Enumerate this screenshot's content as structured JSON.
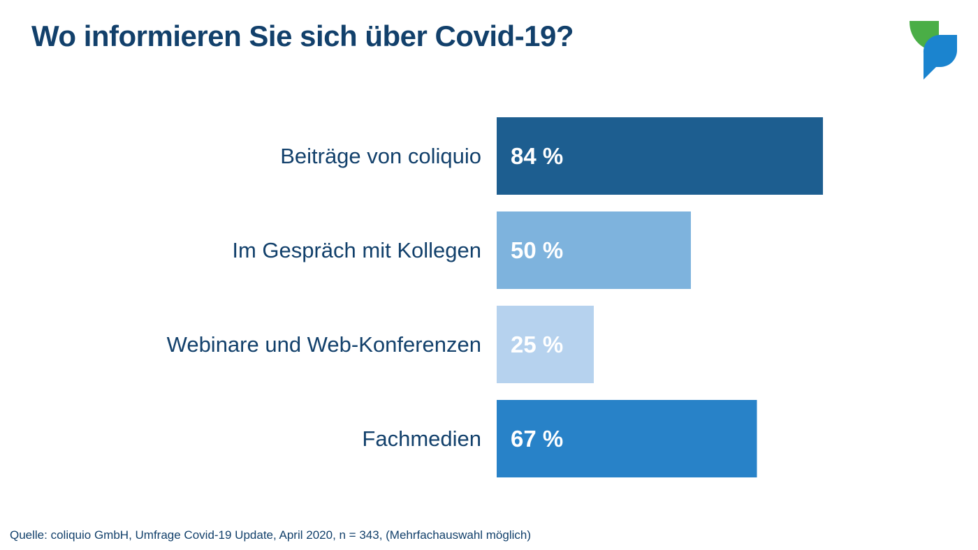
{
  "title": "Wo informieren Sie sich über Covid-19?",
  "source": "Quelle: coliquio GmbH, Umfrage Covid-19 Update, April 2020, n = 343, (Mehrfachauswahl möglich)",
  "logo": {
    "icon": "speech-bubble-logo-icon",
    "colors": [
      "#4aae46",
      "#1b84cf"
    ]
  },
  "chart_data": {
    "type": "bar",
    "orientation": "horizontal",
    "title": "Wo informieren Sie sich über Covid-19?",
    "categories": [
      "Beiträge von coliquio",
      "Im Gespräch mit Kollegen",
      "Webinare und Web-Konferenzen",
      "Fachmedien"
    ],
    "values": [
      84,
      50,
      25,
      67
    ],
    "value_labels": [
      "84 %",
      "50 %",
      "25 %",
      "67 %"
    ],
    "unit": "%",
    "xlim": [
      0,
      100
    ],
    "grid": false,
    "legend": "none",
    "colors": [
      "#1d5e90",
      "#7eb3dd",
      "#b6d2ee",
      "#2882c8"
    ]
  }
}
